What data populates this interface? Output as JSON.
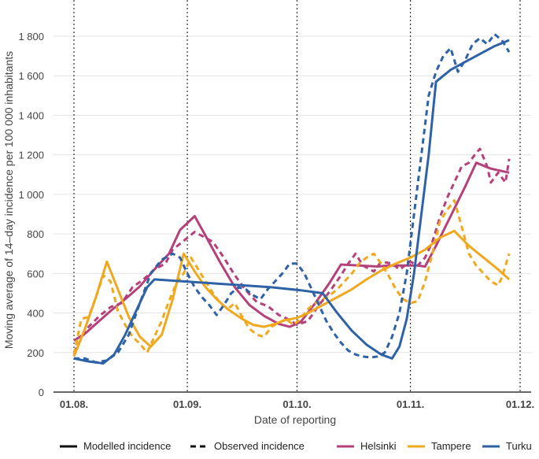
{
  "chart_data": {
    "type": "line",
    "xlabel": "Date of reporting",
    "ylabel": "Moving average of 14–day incidence per 100 000 inhabitants",
    "x_ticks": [
      {
        "label": "01.08.",
        "day": 0
      },
      {
        "label": "01.09.",
        "day": 31
      },
      {
        "label": "01.10.",
        "day": 61
      },
      {
        "label": "01.11.",
        "day": 92
      },
      {
        "label": "01.12.",
        "day": 122
      }
    ],
    "y_ticks": [
      {
        "label": "0",
        "value": 0
      },
      {
        "label": "200",
        "value": 200
      },
      {
        "label": "400",
        "value": 400
      },
      {
        "label": "600",
        "value": 600
      },
      {
        "label": "800",
        "value": 800
      },
      {
        "label": "1 000",
        "value": 1000
      },
      {
        "label": "1 200",
        "value": 1200
      },
      {
        "label": "1 400",
        "value": 1400
      },
      {
        "label": "1 600",
        "value": 1600
      },
      {
        "label": "1 800",
        "value": 1800
      }
    ],
    "xlim": [
      "2020-08-01",
      "2020-12-03"
    ],
    "ylim": [
      0,
      1800
    ],
    "grid": "horizontal",
    "vertical_reference_lines": [
      "01.08.",
      "01.09.",
      "01.10.",
      "01.11.",
      "01.12."
    ],
    "legend": {
      "position": "bottom",
      "line_styles": [
        {
          "label": "Modelled incidence",
          "style": "solid"
        },
        {
          "label": "Observed incidence",
          "style": "dashed"
        }
      ]
    },
    "series": [
      {
        "name": "Helsinki",
        "color": "#b5417a",
        "modelled": [
          [
            0,
            260
          ],
          [
            3,
            295
          ],
          [
            6,
            345
          ],
          [
            10,
            410
          ],
          [
            14,
            470
          ],
          [
            18,
            535
          ],
          [
            22,
            620
          ],
          [
            26,
            700
          ],
          [
            29,
            820
          ],
          [
            33,
            890
          ],
          [
            36,
            790
          ],
          [
            40,
            655
          ],
          [
            44,
            530
          ],
          [
            48,
            440
          ],
          [
            52,
            385
          ],
          [
            56,
            345
          ],
          [
            59,
            330
          ],
          [
            62,
            355
          ],
          [
            66,
            450
          ],
          [
            70,
            555
          ],
          [
            73,
            645
          ],
          [
            78,
            640
          ],
          [
            83,
            635
          ],
          [
            86,
            640
          ],
          [
            90,
            640
          ],
          [
            94,
            640
          ],
          [
            96,
            635
          ],
          [
            99,
            740
          ],
          [
            103,
            890
          ],
          [
            107,
            1040
          ],
          [
            110,
            1160
          ],
          [
            114,
            1130
          ],
          [
            119,
            1110
          ]
        ],
        "observed": [
          [
            0,
            200
          ],
          [
            2,
            270
          ],
          [
            4,
            330
          ],
          [
            7,
            385
          ],
          [
            10,
            430
          ],
          [
            13,
            450
          ],
          [
            16,
            530
          ],
          [
            19,
            570
          ],
          [
            22,
            620
          ],
          [
            25,
            650
          ],
          [
            27,
            720
          ],
          [
            30,
            765
          ],
          [
            33,
            810
          ],
          [
            35,
            790
          ],
          [
            38,
            760
          ],
          [
            41,
            680
          ],
          [
            44,
            590
          ],
          [
            47,
            515
          ],
          [
            50,
            455
          ],
          [
            53,
            435
          ],
          [
            56,
            390
          ],
          [
            59,
            365
          ],
          [
            61,
            340
          ],
          [
            64,
            360
          ],
          [
            67,
            440
          ],
          [
            70,
            510
          ],
          [
            73,
            590
          ],
          [
            75,
            650
          ],
          [
            77,
            700
          ],
          [
            79,
            640
          ],
          [
            82,
            610
          ],
          [
            84,
            660
          ],
          [
            87,
            650
          ],
          [
            89,
            620
          ],
          [
            92,
            660
          ],
          [
            94,
            640
          ],
          [
            96,
            680
          ],
          [
            98,
            760
          ],
          [
            100,
            880
          ],
          [
            102,
            980
          ],
          [
            104,
            1060
          ],
          [
            106,
            1140
          ],
          [
            108,
            1160
          ],
          [
            110,
            1210
          ],
          [
            111,
            1230
          ],
          [
            113,
            1140
          ],
          [
            114,
            1060
          ],
          [
            116,
            1110
          ],
          [
            118,
            1060
          ],
          [
            119,
            1180
          ]
        ]
      },
      {
        "name": "Tampere",
        "color": "#f0a81e",
        "modelled": [
          [
            0,
            180
          ],
          [
            3,
            320
          ],
          [
            6,
            480
          ],
          [
            9,
            660
          ],
          [
            12,
            520
          ],
          [
            15,
            380
          ],
          [
            18,
            280
          ],
          [
            21,
            230
          ],
          [
            24,
            290
          ],
          [
            27,
            470
          ],
          [
            30,
            700
          ],
          [
            33,
            610
          ],
          [
            36,
            530
          ],
          [
            39,
            470
          ],
          [
            42,
            420
          ],
          [
            46,
            370
          ],
          [
            49,
            340
          ],
          [
            52,
            330
          ],
          [
            55,
            345
          ],
          [
            58,
            365
          ],
          [
            61,
            375
          ],
          [
            64,
            400
          ],
          [
            68,
            440
          ],
          [
            72,
            480
          ],
          [
            76,
            520
          ],
          [
            80,
            570
          ],
          [
            84,
            615
          ],
          [
            88,
            650
          ],
          [
            92,
            680
          ],
          [
            96,
            720
          ],
          [
            100,
            780
          ],
          [
            104,
            815
          ],
          [
            108,
            740
          ],
          [
            112,
            680
          ],
          [
            116,
            620
          ],
          [
            119,
            570
          ]
        ],
        "observed": [
          [
            0,
            190
          ],
          [
            2,
            370
          ],
          [
            4,
            380
          ],
          [
            6,
            480
          ],
          [
            8,
            590
          ],
          [
            10,
            560
          ],
          [
            12,
            410
          ],
          [
            14,
            340
          ],
          [
            16,
            280
          ],
          [
            18,
            245
          ],
          [
            20,
            200
          ],
          [
            22,
            280
          ],
          [
            24,
            360
          ],
          [
            26,
            460
          ],
          [
            28,
            550
          ],
          [
            30,
            600
          ],
          [
            32,
            680
          ],
          [
            34,
            620
          ],
          [
            36,
            560
          ],
          [
            38,
            500
          ],
          [
            40,
            450
          ],
          [
            42,
            420
          ],
          [
            44,
            450
          ],
          [
            46,
            380
          ],
          [
            48,
            320
          ],
          [
            50,
            290
          ],
          [
            52,
            280
          ],
          [
            54,
            330
          ],
          [
            56,
            350
          ],
          [
            58,
            370
          ],
          [
            60,
            340
          ],
          [
            62,
            370
          ],
          [
            64,
            420
          ],
          [
            66,
            450
          ],
          [
            68,
            470
          ],
          [
            70,
            490
          ],
          [
            72,
            520
          ],
          [
            74,
            560
          ],
          [
            76,
            600
          ],
          [
            78,
            650
          ],
          [
            80,
            680
          ],
          [
            82,
            700
          ],
          [
            84,
            650
          ],
          [
            86,
            590
          ],
          [
            88,
            520
          ],
          [
            90,
            470
          ],
          [
            92,
            450
          ],
          [
            94,
            460
          ],
          [
            96,
            560
          ],
          [
            98,
            700
          ],
          [
            100,
            860
          ],
          [
            102,
            920
          ],
          [
            104,
            970
          ],
          [
            106,
            840
          ],
          [
            108,
            700
          ],
          [
            110,
            640
          ],
          [
            112,
            600
          ],
          [
            114,
            560
          ],
          [
            116,
            540
          ],
          [
            117,
            580
          ],
          [
            119,
            700
          ]
        ]
      },
      {
        "name": "Turku",
        "color": "#2e62a6",
        "modelled": [
          [
            0,
            170
          ],
          [
            4,
            155
          ],
          [
            8,
            145
          ],
          [
            11,
            190
          ],
          [
            14,
            290
          ],
          [
            17,
            410
          ],
          [
            20,
            530
          ],
          [
            22,
            570
          ],
          [
            30,
            560
          ],
          [
            38,
            550
          ],
          [
            46,
            540
          ],
          [
            54,
            530
          ],
          [
            62,
            515
          ],
          [
            68,
            500
          ],
          [
            72,
            400
          ],
          [
            76,
            310
          ],
          [
            80,
            240
          ],
          [
            84,
            190
          ],
          [
            87,
            170
          ],
          [
            89,
            230
          ],
          [
            91,
            370
          ],
          [
            93,
            600
          ],
          [
            95,
            900
          ],
          [
            97,
            1200
          ],
          [
            99,
            1570
          ],
          [
            103,
            1630
          ],
          [
            107,
            1670
          ],
          [
            111,
            1710
          ],
          [
            115,
            1750
          ],
          [
            119,
            1780
          ]
        ],
        "observed": [
          [
            0,
            170
          ],
          [
            3,
            170
          ],
          [
            6,
            150
          ],
          [
            9,
            160
          ],
          [
            12,
            200
          ],
          [
            15,
            290
          ],
          [
            18,
            450
          ],
          [
            21,
            600
          ],
          [
            24,
            670
          ],
          [
            27,
            700
          ],
          [
            29,
            680
          ],
          [
            31,
            600
          ],
          [
            33,
            530
          ],
          [
            35,
            480
          ],
          [
            37,
            440
          ],
          [
            39,
            390
          ],
          [
            41,
            440
          ],
          [
            43,
            500
          ],
          [
            45,
            530
          ],
          [
            47,
            520
          ],
          [
            49,
            490
          ],
          [
            51,
            470
          ],
          [
            53,
            520
          ],
          [
            55,
            560
          ],
          [
            57,
            600
          ],
          [
            59,
            650
          ],
          [
            61,
            650
          ],
          [
            63,
            600
          ],
          [
            65,
            520
          ],
          [
            67,
            440
          ],
          [
            69,
            360
          ],
          [
            71,
            300
          ],
          [
            73,
            250
          ],
          [
            75,
            210
          ],
          [
            77,
            190
          ],
          [
            79,
            180
          ],
          [
            81,
            175
          ],
          [
            83,
            180
          ],
          [
            85,
            200
          ],
          [
            87,
            280
          ],
          [
            89,
            400
          ],
          [
            91,
            600
          ],
          [
            93,
            900
          ],
          [
            95,
            1200
          ],
          [
            97,
            1500
          ],
          [
            99,
            1620
          ],
          [
            101,
            1700
          ],
          [
            103,
            1740
          ],
          [
            105,
            1620
          ],
          [
            107,
            1680
          ],
          [
            109,
            1760
          ],
          [
            111,
            1790
          ],
          [
            113,
            1760
          ],
          [
            115,
            1810
          ],
          [
            117,
            1780
          ],
          [
            119,
            1720
          ]
        ]
      }
    ]
  }
}
